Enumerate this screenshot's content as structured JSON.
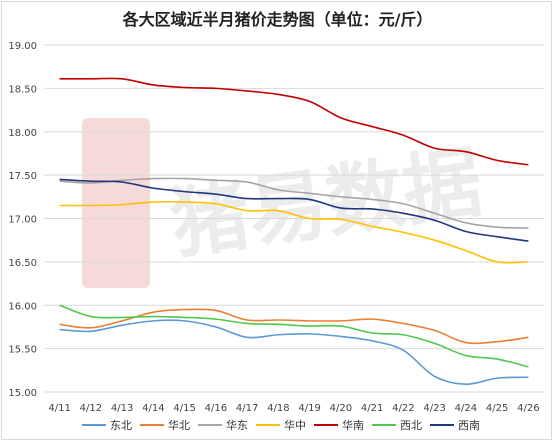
{
  "chart_data": {
    "type": "line",
    "title": "各大区域近半月猪价走势图（单位：元/斤）",
    "xlabel": "",
    "ylabel": "",
    "ylim": [
      15.0,
      19.0
    ],
    "yticks": [
      "19.00",
      "18.50",
      "18.00",
      "17.50",
      "17.00",
      "16.50",
      "16.00",
      "15.50",
      "15.00"
    ],
    "categories": [
      "4/11",
      "4/12",
      "4/13",
      "4/14",
      "4/15",
      "4/16",
      "4/17",
      "4/18",
      "4/19",
      "4/20",
      "4/21",
      "4/22",
      "4/23",
      "4/24",
      "4/25",
      "4/26"
    ],
    "grid": "horizontal",
    "legend_position": "bottom",
    "watermark": "猪易数据",
    "series": [
      {
        "name": "东北",
        "color": "#5b9bd5",
        "values": [
          15.72,
          15.7,
          15.77,
          15.82,
          15.82,
          15.75,
          15.63,
          15.66,
          15.67,
          15.64,
          15.59,
          15.48,
          15.18,
          15.09,
          15.16,
          15.17
        ]
      },
      {
        "name": "华北",
        "color": "#ed7d31",
        "values": [
          15.78,
          15.74,
          15.82,
          15.92,
          15.95,
          15.94,
          15.83,
          15.83,
          15.82,
          15.82,
          15.84,
          15.79,
          15.71,
          15.57,
          15.58,
          15.63
        ]
      },
      {
        "name": "华东",
        "color": "#a5a5a5",
        "values": [
          17.43,
          17.41,
          17.44,
          17.46,
          17.46,
          17.44,
          17.42,
          17.33,
          17.29,
          17.25,
          17.22,
          17.17,
          17.06,
          16.95,
          16.9,
          16.89
        ]
      },
      {
        "name": "华中",
        "color": "#ffc000",
        "values": [
          17.15,
          17.15,
          17.16,
          17.19,
          17.19,
          17.17,
          17.09,
          17.09,
          17.0,
          16.99,
          16.91,
          16.84,
          16.75,
          16.63,
          16.5,
          16.5
        ]
      },
      {
        "name": "华南",
        "color": "#c00000",
        "values": [
          18.61,
          18.61,
          18.61,
          18.54,
          18.51,
          18.5,
          18.47,
          18.43,
          18.35,
          18.16,
          18.06,
          17.96,
          17.81,
          17.77,
          17.67,
          17.62
        ]
      },
      {
        "name": "西北",
        "color": "#4fc84f",
        "values": [
          16.0,
          15.87,
          15.86,
          15.87,
          15.86,
          15.84,
          15.79,
          15.78,
          15.76,
          15.76,
          15.68,
          15.66,
          15.56,
          15.42,
          15.38,
          15.29
        ]
      },
      {
        "name": "西南",
        "color": "#203780",
        "values": [
          17.45,
          17.43,
          17.42,
          17.35,
          17.31,
          17.28,
          17.23,
          17.23,
          17.22,
          17.12,
          17.11,
          17.06,
          16.98,
          16.85,
          16.79,
          16.74
        ]
      }
    ]
  }
}
